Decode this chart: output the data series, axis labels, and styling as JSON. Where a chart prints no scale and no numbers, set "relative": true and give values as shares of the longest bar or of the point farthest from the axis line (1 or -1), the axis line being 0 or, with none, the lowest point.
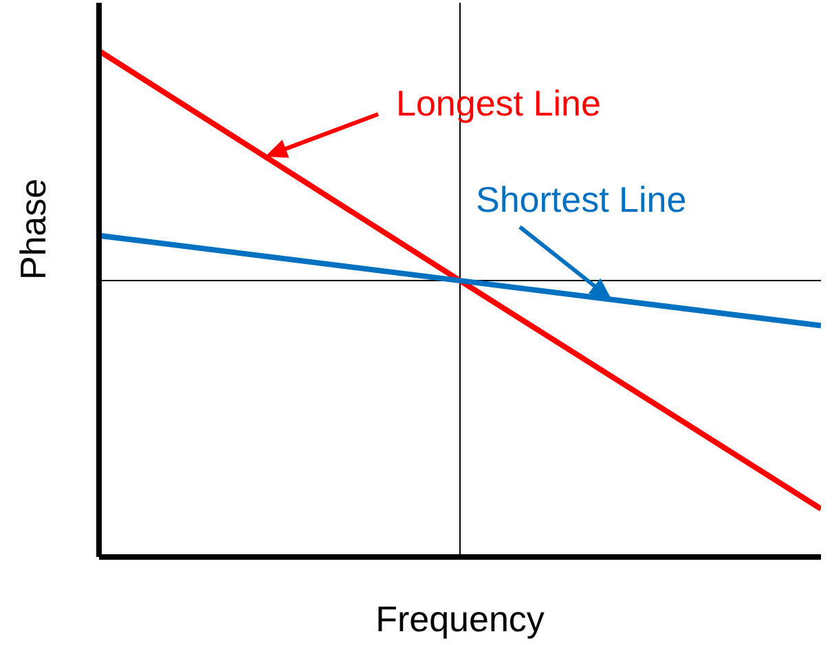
{
  "chart_data": {
    "type": "line",
    "relative": true,
    "xlabel": "Frequency",
    "ylabel": "Phase",
    "categories": [
      null,
      null,
      null
    ],
    "series": [
      {
        "name": "Longest Line",
        "color": "#ff0000",
        "values": [
          1,
          0.546,
          0.095
        ]
      },
      {
        "name": "Shortest Line",
        "color": "#0070c0",
        "values": [
          0.635,
          0.546,
          0.457
        ]
      }
    ],
    "ref_lines": [
      {
        "axis": "y",
        "value": 0.546,
        "color": "#000000"
      }
    ],
    "marker": "none",
    "line_style": "solid"
  }
}
